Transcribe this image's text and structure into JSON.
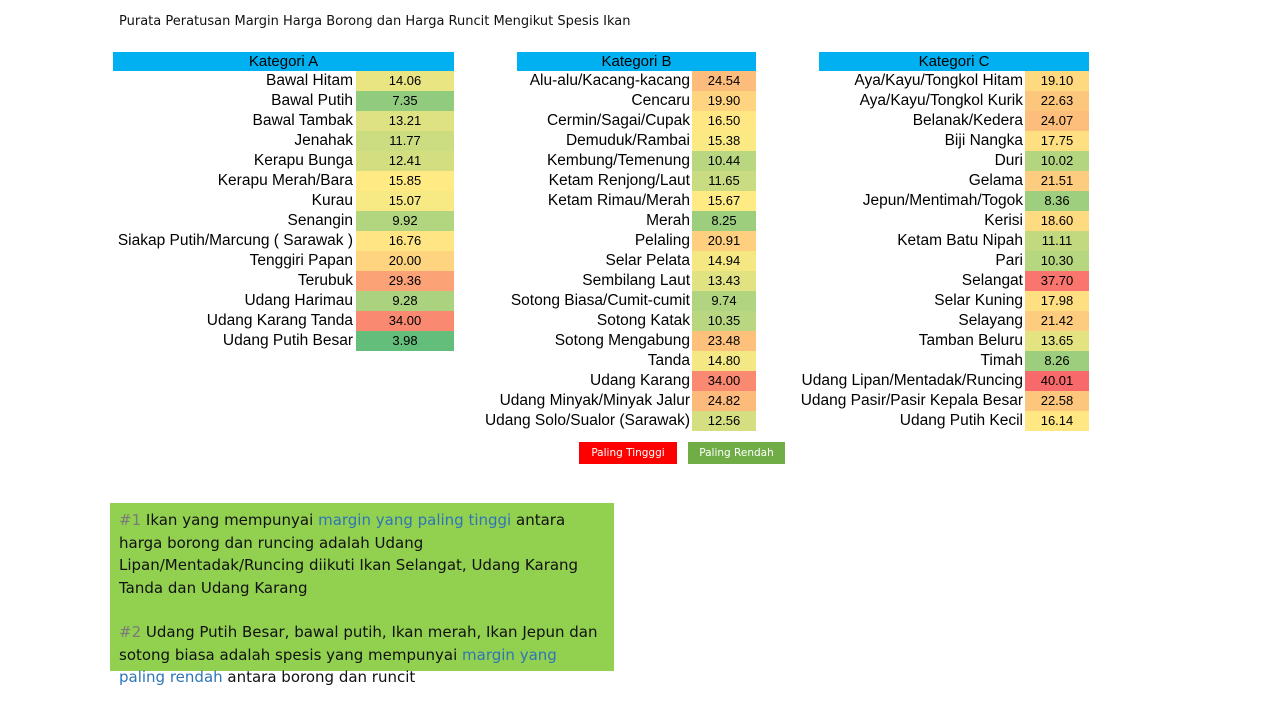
{
  "title": "Purata Peratusan Margin Harga Borong dan Harga Runcit Mengikut Spesis Ikan",
  "colors": {
    "header": "#00b0f0",
    "low": "#63be7b",
    "mid": "#ffeb84",
    "high": "#f8696b",
    "legend_high": "#ff0000",
    "legend_low": "#70ad47",
    "notes_bg": "#92d050",
    "notes_highlight": "#2e75b6"
  },
  "legend": {
    "high": "Paling Tingggi",
    "low": "Paling Rendah"
  },
  "notes": {
    "note1": {
      "num": "#1",
      "text_a": " Ikan yang mempunyai ",
      "highlight": "margin yang paling tinggi",
      "text_b": " antara harga borong dan runcing adalah Udang Lipan/Mentadak/Runcing diikuti Ikan Selangat, Udang Karang Tanda dan Udang Karang"
    },
    "note2": {
      "num": "#2",
      "text_a": " Udang Putih Besar, bawal putih, Ikan merah, Ikan Jepun dan sotong biasa adalah spesis yang mempunyai ",
      "highlight": "margin yang paling rendah",
      "text_b": " antara borong dan runcit"
    }
  },
  "chart_data": [
    {
      "type": "table",
      "title": "Kategori A",
      "categories": [
        "Bawal Hitam",
        "Bawal Putih",
        "Bawal Tambak",
        "Jenahak",
        "Kerapu Bunga",
        "Kerapu Merah/Bara",
        "Kurau",
        "Senangin",
        "Siakap Putih/Marcung ( Sarawak )",
        "Tenggiri Papan",
        "Terubuk",
        "Udang Harimau",
        "Udang Karang Tanda",
        "Udang Putih Besar"
      ],
      "values": [
        14.06,
        7.35,
        13.21,
        11.77,
        12.41,
        15.85,
        15.07,
        9.92,
        16.76,
        20.0,
        29.36,
        9.28,
        34.0,
        3.98
      ],
      "display": [
        "14.06",
        "7.35",
        "13.21",
        "11.77",
        "12.41",
        "15.85",
        "15.07",
        "9.92",
        "16.76",
        "20.00",
        "29.36",
        "9.28",
        "34.00",
        "3.98"
      ]
    },
    {
      "type": "table",
      "title": "Kategori B",
      "categories": [
        "Alu-alu/Kacang-kacang",
        "Cencaru",
        "Cermin/Sagai/Cupak",
        "Demuduk/Rambai",
        "Kembung/Temenung",
        "Ketam Renjong/Laut",
        "Ketam Rimau/Merah",
        "Merah",
        "Pelaling",
        "Selar Pelata",
        "Sembilang Laut",
        "Sotong Biasa/Cumit-cumit",
        "Sotong Katak",
        "Sotong Mengabung",
        "Tanda",
        "Udang Karang",
        "Udang Minyak/Minyak Jalur",
        "Udang Solo/Sualor (Sarawak)"
      ],
      "values": [
        24.54,
        19.9,
        16.5,
        15.38,
        10.44,
        11.65,
        15.67,
        8.25,
        20.91,
        14.94,
        13.43,
        9.74,
        10.35,
        23.48,
        14.8,
        34.0,
        24.82,
        12.56
      ],
      "display": [
        "24.54",
        "19.90",
        "16.50",
        "15.38",
        "10.44",
        "11.65",
        "15.67",
        "8.25",
        "20.91",
        "14.94",
        "13.43",
        "9.74",
        "10.35",
        "23.48",
        "14.80",
        "34.00",
        "24.82",
        "12.56"
      ]
    },
    {
      "type": "table",
      "title": "Kategori C",
      "categories": [
        "Aya/Kayu/Tongkol Hitam",
        "Aya/Kayu/Tongkol Kurik",
        "Belanak/Kedera",
        "Biji Nangka",
        "Duri",
        "Gelama",
        "Jepun/Mentimah/Togok",
        "Kerisi",
        "Ketam Batu Nipah",
        "Pari",
        "Selangat",
        "Selar Kuning",
        "Selayang",
        "Tamban Beluru",
        "Timah",
        "Udang Lipan/Mentadak/Runcing",
        "Udang Pasir/Pasir Kepala Besar",
        "Udang Putih Kecil"
      ],
      "values": [
        19.1,
        22.63,
        24.07,
        17.75,
        10.02,
        21.51,
        8.36,
        18.6,
        11.11,
        10.3,
        37.7,
        17.98,
        21.42,
        13.65,
        8.26,
        40.01,
        22.58,
        16.14
      ],
      "display": [
        "19.10",
        "22.63",
        "24.07",
        "17.75",
        "10.02",
        "21.51",
        "8.36",
        "18.60",
        "11.11",
        "10.30",
        "37.70",
        "17.98",
        "21.42",
        "13.65",
        "8.26",
        "40.01",
        "22.58",
        "16.14"
      ]
    }
  ]
}
